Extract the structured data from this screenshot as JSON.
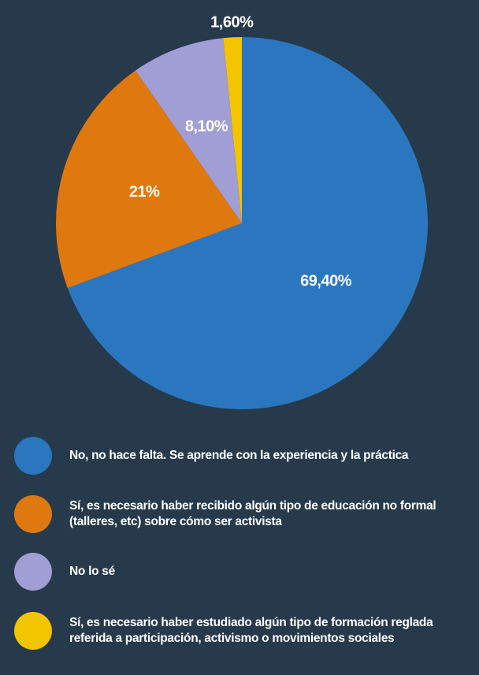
{
  "chart_data": {
    "type": "pie",
    "categories": [
      "No, no hace falta. Se aprende con la experiencia y la práctica",
      "Sí, es necesario haber recibido algún tipo de educación no formal (talleres, etc) sobre cómo ser activista",
      "No lo sé",
      "Sí, es necesario haber estudiado algún tipo de formación reglada referida a participación, activismo o movimientos sociales"
    ],
    "values": [
      69.4,
      21,
      8.1,
      1.6
    ],
    "value_labels": [
      "69,40%",
      "21%",
      "8,10%",
      "1,60%"
    ],
    "colors": [
      "#2a77c0",
      "#e07810",
      "#a09ed4",
      "#f2c500"
    ]
  }
}
